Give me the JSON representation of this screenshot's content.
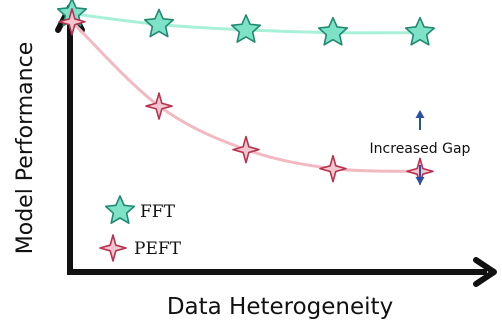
{
  "chart_data": {
    "type": "line",
    "title": "",
    "xlabel": "Data Heterogeneity",
    "ylabel": "Model Performance",
    "grid": false,
    "legend_placement": "bottom-left",
    "series": [
      {
        "name": "FFT",
        "marker": "star-5-point",
        "line_color": "#a8f0d8",
        "marker_fill": "#7ee2c6",
        "marker_stroke": "#1f8a70",
        "values": [
          0.95,
          0.91,
          0.89,
          0.88,
          0.88
        ]
      },
      {
        "name": "PEFT",
        "marker": "star-4-point",
        "line_color": "#f2b9c3",
        "marker_fill": "#f3c7cf",
        "marker_stroke": "#b8324f",
        "values": [
          0.92,
          0.61,
          0.45,
          0.38,
          0.37
        ]
      }
    ],
    "x": [
      0,
      1,
      2,
      3,
      4
    ],
    "ylim": [
      0,
      1
    ],
    "annotations": [
      {
        "text": "Increased Gap",
        "color": "#c9325a",
        "arrow_color": "#2b4fa3"
      }
    ]
  }
}
